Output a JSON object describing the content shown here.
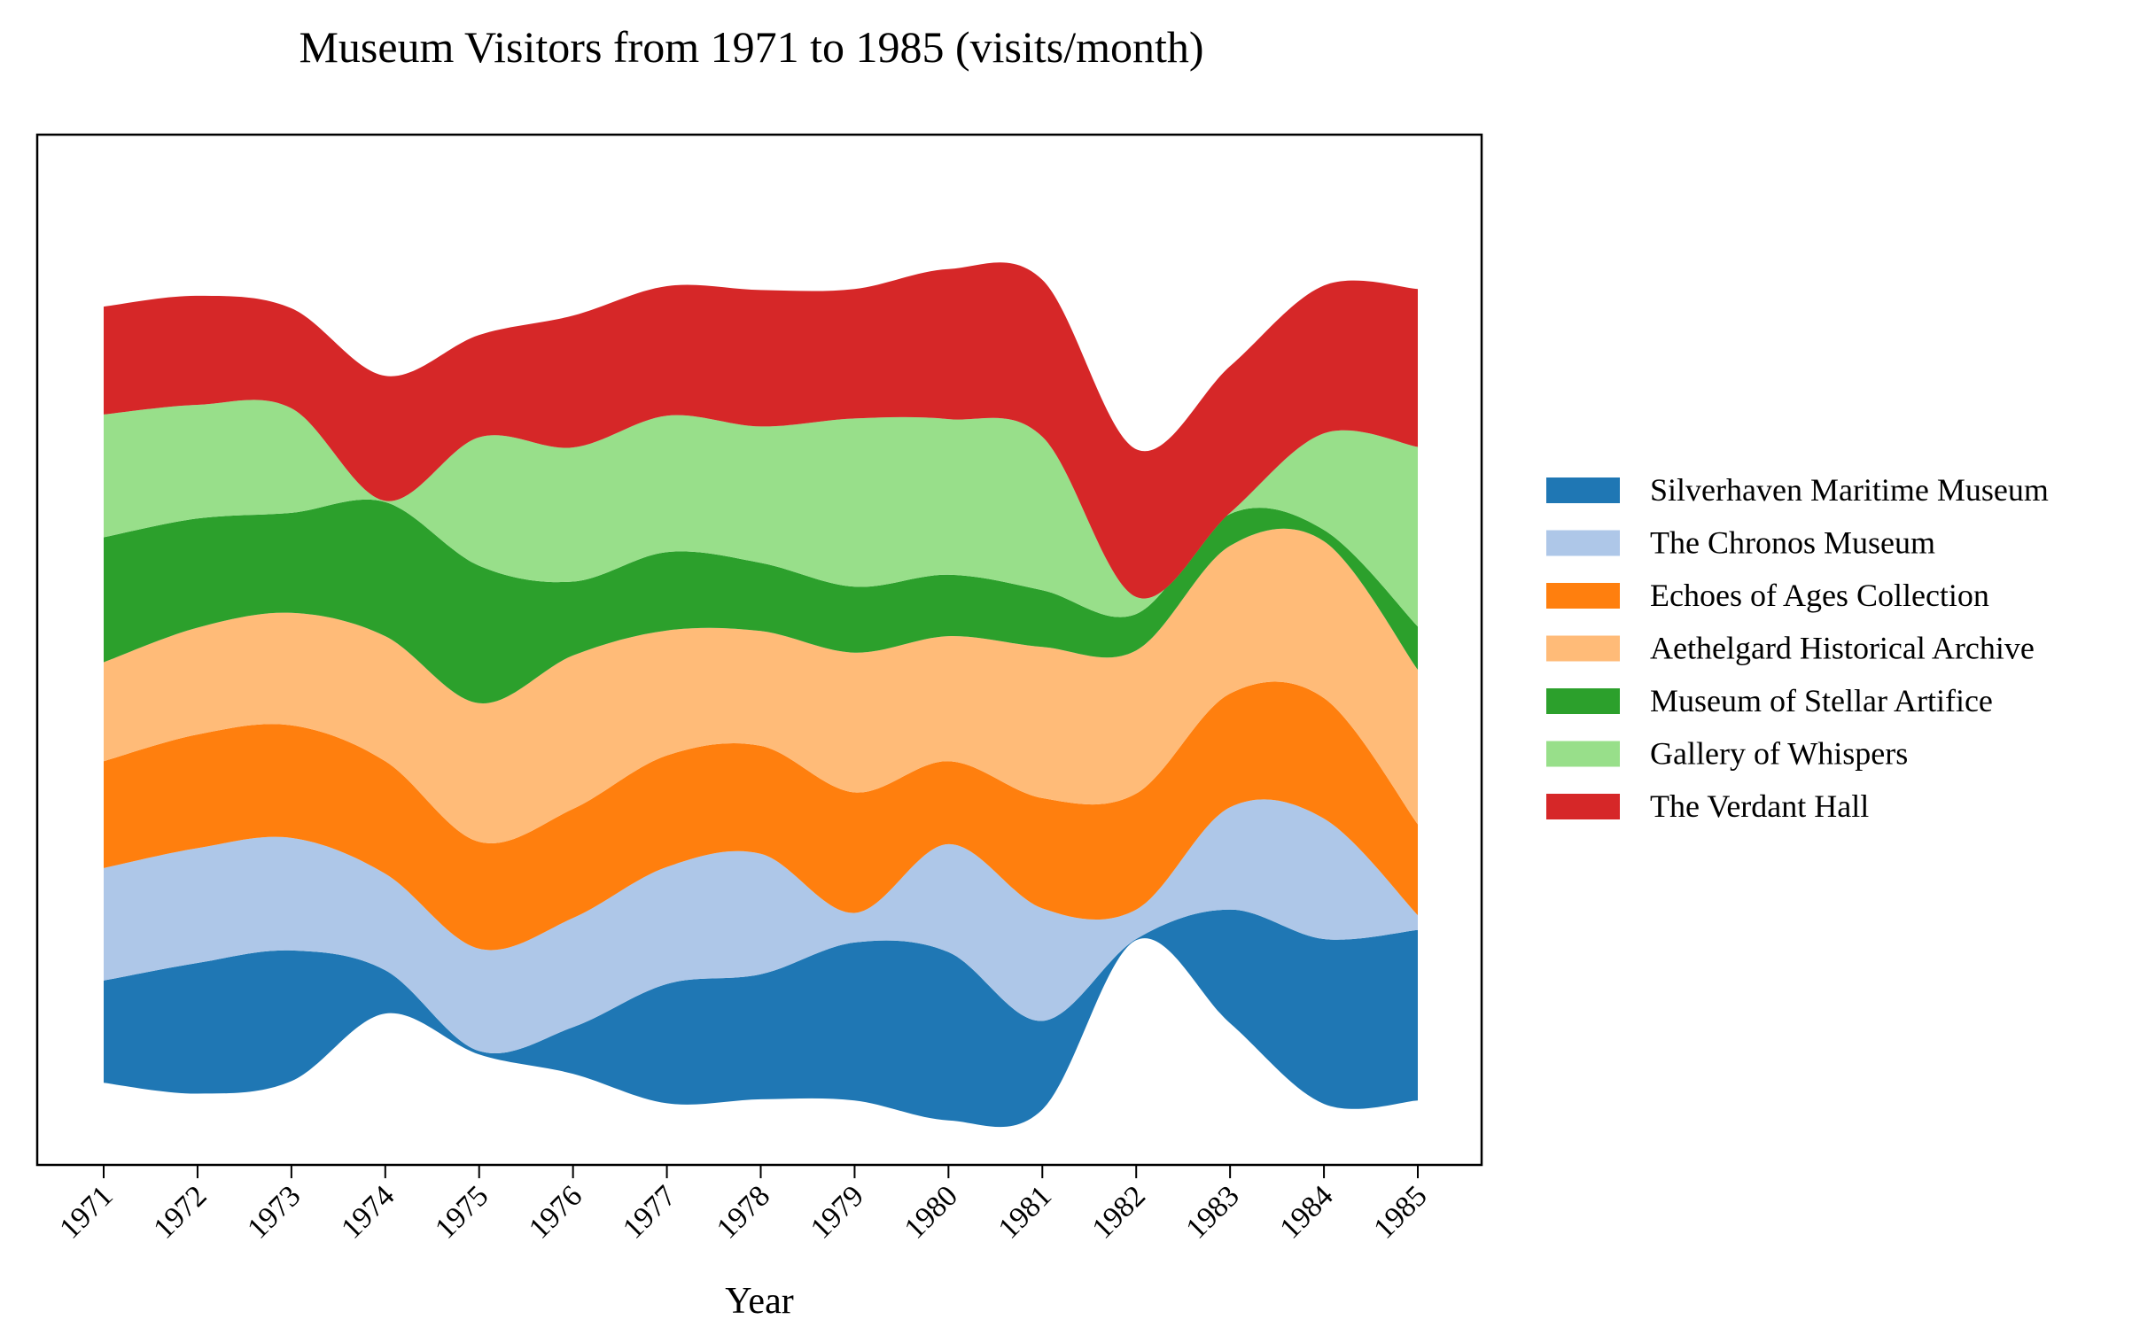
{
  "chart_data": {
    "type": "area",
    "subtype": "streamgraph",
    "title": "Museum Visitors from 1971 to 1985 (visits/month)",
    "xlabel": "Year",
    "ylabel": "",
    "x": [
      "1971",
      "1972",
      "1973",
      "1974",
      "1975",
      "1976",
      "1977",
      "1978",
      "1979",
      "1980",
      "1981",
      "1982",
      "1983",
      "1984",
      "1985"
    ],
    "grid": false,
    "legend_position": "right",
    "yaxis_visible": false,
    "series": [
      {
        "name": "Silverhaven Maritime Museum",
        "color": "#1f77b4",
        "values": [
          900,
          1150,
          1150,
          380,
          30,
          410,
          1050,
          1100,
          1390,
          1480,
          780,
          10,
          1000,
          1450,
          1500
        ]
      },
      {
        "name": "The Chronos Museum",
        "color": "#aec7e8",
        "values": [
          990,
          1010,
          990,
          850,
          900,
          960,
          1030,
          1060,
          260,
          950,
          990,
          260,
          900,
          1060,
          130
        ]
      },
      {
        "name": "Echoes of Ages Collection",
        "color": "#ff7f0e",
        "values": [
          940,
          1000,
          990,
          990,
          940,
          960,
          980,
          950,
          1060,
          730,
          970,
          1020,
          1000,
          1060,
          800
        ]
      },
      {
        "name": "Aethelgard Historical Archive",
        "color": "#ffbb78",
        "values": [
          870,
          940,
          990,
          1100,
          1220,
          1350,
          1100,
          1010,
          1230,
          1100,
          1330,
          1260,
          1300,
          1380,
          1360
        ]
      },
      {
        "name": "Museum of Stellar Artifice",
        "color": "#2ca02c",
        "values": [
          1100,
          960,
          880,
          1180,
          1210,
          650,
          690,
          600,
          580,
          540,
          500,
          320,
          280,
          100,
          380
        ]
      },
      {
        "name": "Gallery of Whispers",
        "color": "#98df8a",
        "values": [
          1080,
          1000,
          920,
          10,
          1130,
          1180,
          1200,
          1200,
          1480,
          1370,
          1350,
          150,
          10,
          850,
          1580
        ]
      },
      {
        "name": "The Verdant Hall",
        "color": "#d62728",
        "values": [
          950,
          960,
          880,
          1100,
          900,
          1160,
          1140,
          1200,
          1140,
          1320,
          1380,
          1300,
          1290,
          1300,
          1390
        ]
      }
    ]
  }
}
